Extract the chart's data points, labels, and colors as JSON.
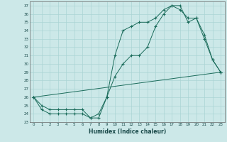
{
  "xlabel": "Humidex (Indice chaleur)",
  "xlim": [
    -0.5,
    23.5
  ],
  "ylim": [
    23,
    37.5
  ],
  "yticks": [
    23,
    24,
    25,
    26,
    27,
    28,
    29,
    30,
    31,
    32,
    33,
    34,
    35,
    36,
    37
  ],
  "xticks": [
    0,
    1,
    2,
    3,
    4,
    5,
    6,
    7,
    8,
    9,
    10,
    11,
    12,
    13,
    14,
    15,
    16,
    17,
    18,
    19,
    20,
    21,
    22,
    23
  ],
  "bg_color": "#cce8e8",
  "grid_color": "#aad4d4",
  "line_color": "#1a6b5a",
  "line1_x": [
    0,
    1,
    2,
    3,
    4,
    5,
    6,
    7,
    8,
    9,
    10,
    11,
    12,
    13,
    14,
    15,
    16,
    17,
    18,
    19,
    20,
    21,
    22,
    23
  ],
  "line1_y": [
    26.0,
    25.0,
    24.5,
    24.5,
    24.5,
    24.5,
    24.5,
    23.5,
    23.5,
    26.0,
    31.0,
    34.0,
    34.5,
    35.0,
    35.0,
    35.5,
    36.5,
    37.0,
    37.0,
    35.0,
    35.5,
    33.0,
    30.5,
    29.0
  ],
  "line2_x": [
    0,
    1,
    2,
    3,
    4,
    5,
    6,
    7,
    8,
    9,
    10,
    11,
    12,
    13,
    14,
    15,
    16,
    17,
    18,
    19,
    20,
    21,
    22,
    23
  ],
  "line2_y": [
    26.0,
    24.5,
    24.0,
    24.0,
    24.0,
    24.0,
    24.0,
    23.5,
    24.0,
    26.0,
    28.5,
    30.0,
    31.0,
    31.0,
    32.0,
    34.5,
    36.0,
    37.0,
    36.5,
    35.5,
    35.5,
    33.5,
    30.5,
    29.0
  ],
  "line3_x": [
    0,
    23
  ],
  "line3_y": [
    26.0,
    29.0
  ]
}
